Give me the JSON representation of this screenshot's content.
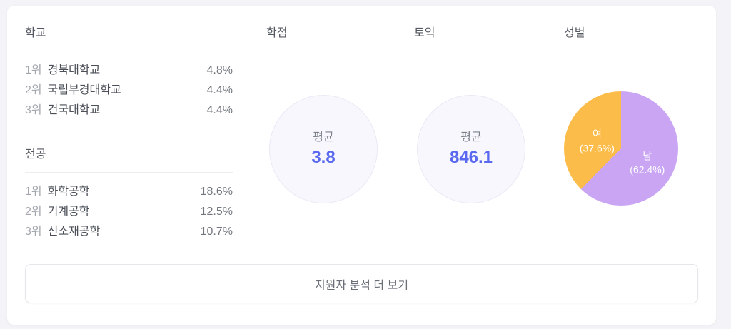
{
  "sections": {
    "school": {
      "title": "학교",
      "items": [
        {
          "rank": "1위",
          "name": "경북대학교",
          "value": "4.8%"
        },
        {
          "rank": "2위",
          "name": "국립부경대학교",
          "value": "4.4%"
        },
        {
          "rank": "3위",
          "name": "건국대학교",
          "value": "4.4%"
        }
      ]
    },
    "major": {
      "title": "전공",
      "items": [
        {
          "rank": "1위",
          "name": "화학공학",
          "value": "18.6%"
        },
        {
          "rank": "2위",
          "name": "기계공학",
          "value": "12.5%"
        },
        {
          "rank": "3위",
          "name": "신소재공학",
          "value": "10.7%"
        }
      ]
    },
    "gpa": {
      "title": "학점",
      "avg_label": "평균",
      "avg_value": "3.8"
    },
    "toeic": {
      "title": "토익",
      "avg_label": "평균",
      "avg_value": "846.1"
    },
    "gender": {
      "title": "성별",
      "slices": [
        {
          "label": "남",
          "pct_text": "(62.4%)"
        },
        {
          "label": "여",
          "pct_text": "(37.6%)"
        }
      ]
    }
  },
  "footer": {
    "more_button_label": "지원자 분석 더 보기"
  },
  "colors": {
    "accent_blue": "#5a69ef",
    "pie_male_purple": "#c9a5f3",
    "pie_female_orange": "#fcbc49",
    "circle_fill": "#f7f7fd",
    "circle_border": "#e9e9f6",
    "card_bg": "#ffffff",
    "page_bg": "#f4f4f8"
  },
  "chart_data": [
    {
      "type": "pie",
      "title": "성별",
      "labels": [
        "남",
        "여"
      ],
      "values": [
        62.4,
        37.6
      ],
      "colors": [
        "#c9a5f3",
        "#fcbc49"
      ],
      "unit": "%",
      "start_angle": "12-o'clock, clockwise",
      "legend_position": "labels inside slices"
    },
    {
      "type": "table",
      "title": "학교",
      "columns": [
        "rank",
        "school",
        "share"
      ],
      "rows": [
        [
          "1위",
          "경북대학교",
          "4.8%"
        ],
        [
          "2위",
          "국립부경대학교",
          "4.4%"
        ],
        [
          "3위",
          "건국대학교",
          "4.4%"
        ]
      ]
    },
    {
      "type": "table",
      "title": "전공",
      "columns": [
        "rank",
        "major",
        "share"
      ],
      "rows": [
        [
          "1위",
          "화학공학",
          "18.6%"
        ],
        [
          "2위",
          "기계공학",
          "12.5%"
        ],
        [
          "3위",
          "신소재공학",
          "10.7%"
        ]
      ]
    }
  ]
}
